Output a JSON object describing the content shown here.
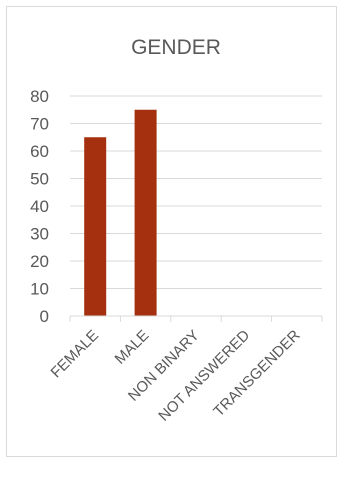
{
  "chart_data": {
    "type": "bar",
    "title": "GENDER",
    "categories": [
      "FEMALE",
      "MALE",
      "NON BINARY",
      "NOT ANSWERED",
      "TRANSGENDER"
    ],
    "values": [
      65,
      75,
      0,
      0,
      0
    ],
    "xlabel": "",
    "ylabel": "",
    "ylim": [
      0,
      80
    ],
    "yticks": [
      "0",
      "10",
      "20",
      "30",
      "40",
      "50",
      "60",
      "70",
      "80"
    ],
    "grid": true,
    "legend": "none",
    "bar_color": "#a5300f",
    "grid_color": "#d9d9d9",
    "text_color": "#595959"
  }
}
